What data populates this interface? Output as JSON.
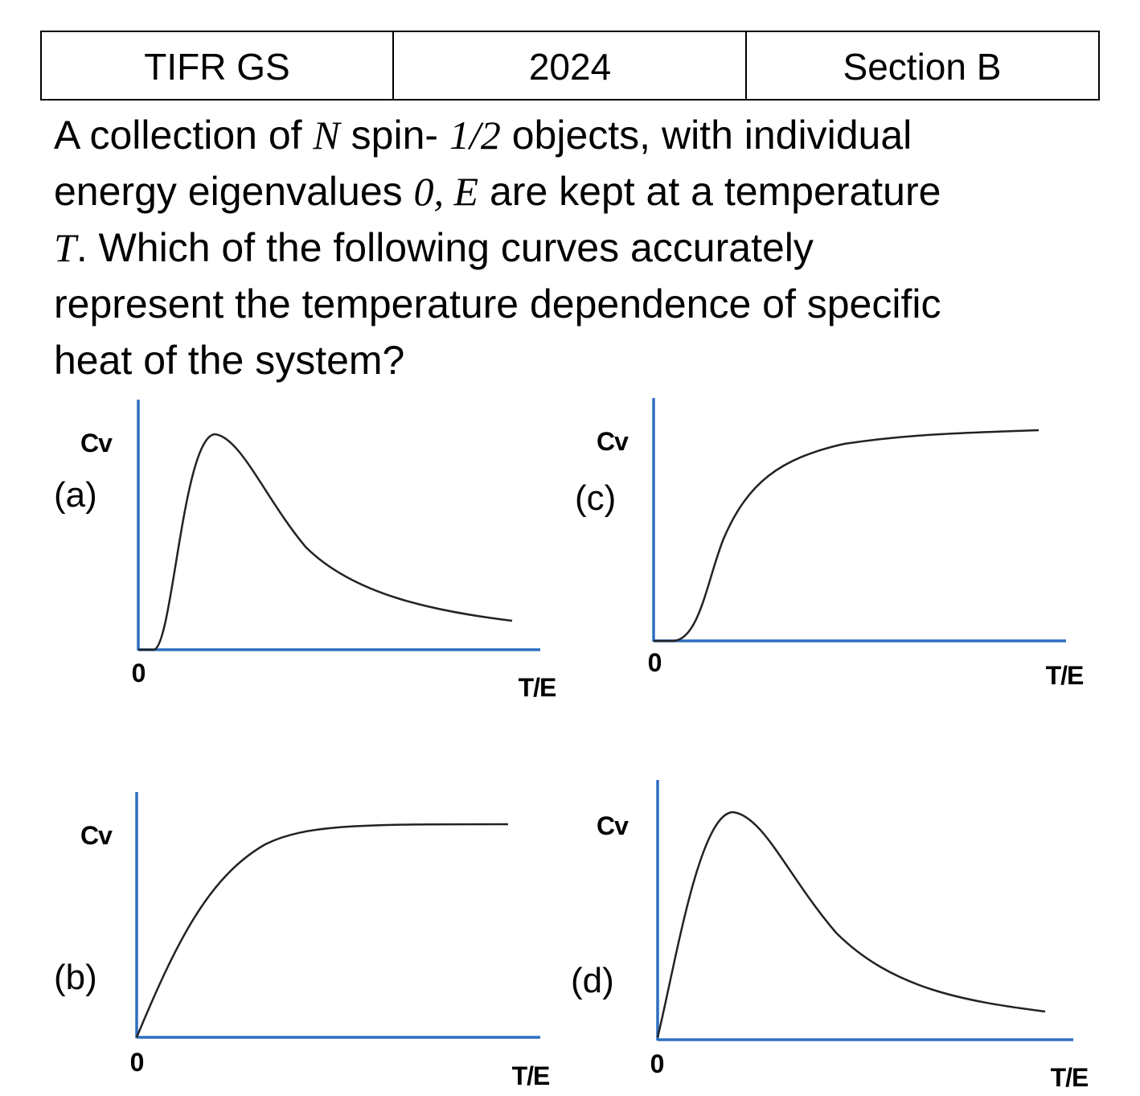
{
  "header": {
    "cells": [
      "TIFR GS",
      "2024",
      "Section B"
    ]
  },
  "question": {
    "lines": [
      [
        {
          "text": "A collection of "
        },
        {
          "text": "N",
          "math": true
        },
        {
          "text": " spin- "
        },
        {
          "text": "1/2",
          "math": true
        },
        {
          "text": " objects, with individual"
        }
      ],
      [
        {
          "text": "energy eigenvalues "
        },
        {
          "text": "0, E",
          "math": true
        },
        {
          "text": " are kept at a temperature"
        }
      ],
      [
        {
          "text": "T",
          "math": true
        },
        {
          "text": ". Which of the following curves accurately"
        }
      ],
      [
        {
          "text": "represent the temperature dependence of specific"
        }
      ],
      [
        {
          "text": "heat of the system?"
        }
      ]
    ]
  },
  "panels": [
    {
      "label": "(a)",
      "y_label": "Cv",
      "origin": "0",
      "x_label": "T/E"
    },
    {
      "label": "(c)",
      "y_label": "Cv",
      "origin": "0",
      "x_label": "T/E"
    },
    {
      "label": "(b)",
      "y_label": "Cv",
      "origin": "0",
      "x_label": "T/E"
    },
    {
      "label": "(d)",
      "y_label": "Cv",
      "origin": "0",
      "x_label": "T/E"
    }
  ]
}
